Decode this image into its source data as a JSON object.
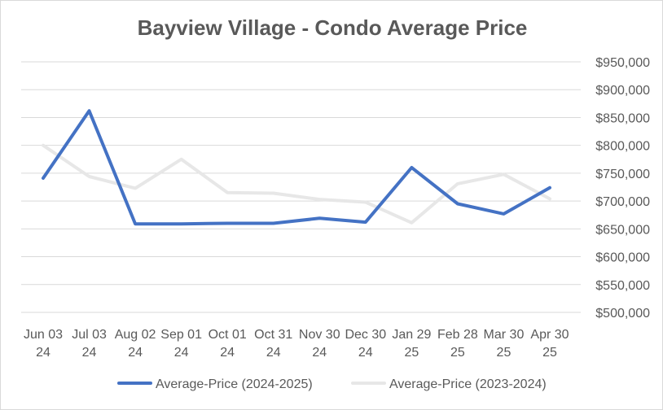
{
  "chart_data": {
    "type": "line",
    "title": "Bayview Village - Condo Average Price",
    "categories": [
      [
        "Jun 03",
        "24"
      ],
      [
        "Jul 03",
        "24"
      ],
      [
        "Aug 02",
        "24"
      ],
      [
        "Sep 01",
        "24"
      ],
      [
        "Oct 01",
        "24"
      ],
      [
        "Oct 31",
        "24"
      ],
      [
        "Nov 30",
        "24"
      ],
      [
        "Dec 30",
        "24"
      ],
      [
        "Jan 29",
        "25"
      ],
      [
        "Feb 28",
        "25"
      ],
      [
        "Mar 30",
        "25"
      ],
      [
        "Apr 30",
        "25"
      ]
    ],
    "y_ticks": [
      "$500,000",
      "$550,000",
      "$600,000",
      "$650,000",
      "$700,000",
      "$750,000",
      "$800,000",
      "$850,000",
      "$900,000",
      "$950,000"
    ],
    "ylim": [
      500000,
      950000
    ],
    "y_axis_side": "right",
    "grid": true,
    "legend_position": "bottom",
    "series": [
      {
        "name": "Average-Price (2024-2025)",
        "color": "#4472c4",
        "values": [
          741000,
          862000,
          659000,
          659000,
          660000,
          660000,
          669000,
          662000,
          760000,
          695000,
          677000,
          724000
        ]
      },
      {
        "name": "Average-Price (2023-2024)",
        "color": "#e7e7e7",
        "values": [
          800000,
          744000,
          723000,
          775000,
          715000,
          714000,
          703000,
          698000,
          661000,
          731000,
          748000,
          704000
        ]
      }
    ]
  }
}
